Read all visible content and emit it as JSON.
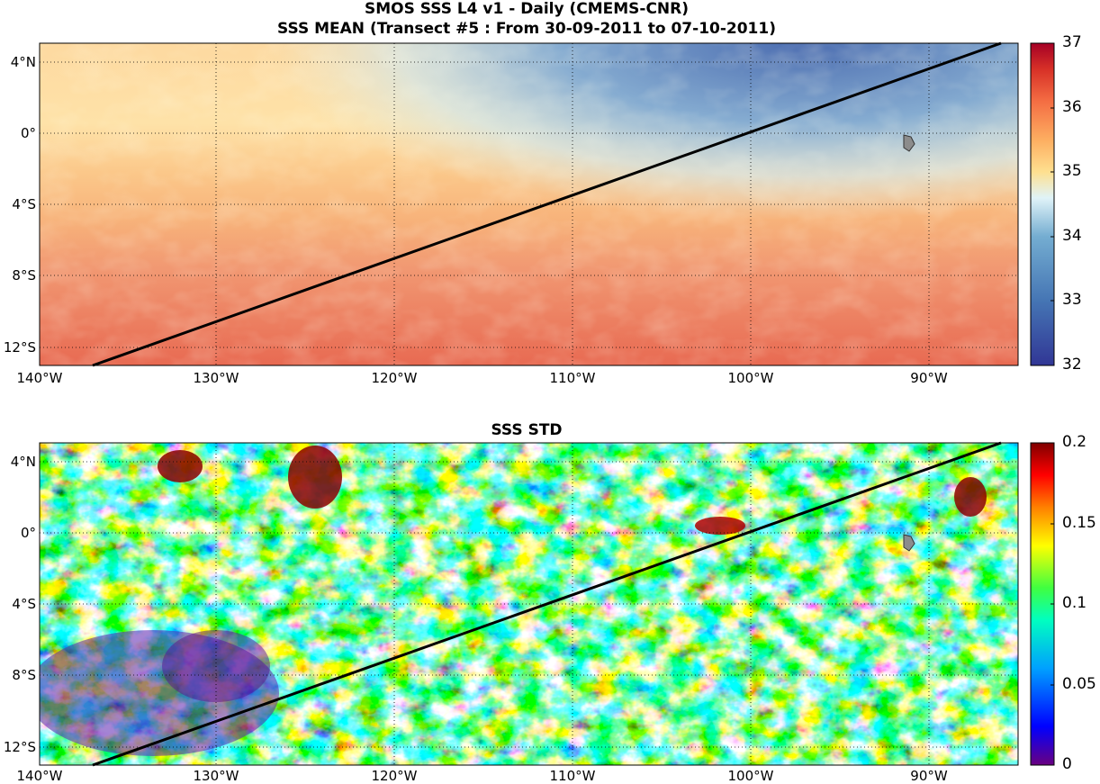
{
  "figure": {
    "title_line1": "SMOS SSS L4 v1 - Daily (CMEMS-CNR)",
    "title_line2": "SSS MEAN (Transect #5 : From 30-09-2011 to 07-10-2011)",
    "panel2_title": "SSS STD"
  },
  "axes": {
    "lat_ticks": [
      "4°N",
      "0°",
      "4°S",
      "8°S",
      "12°S"
    ],
    "lon_ticks": [
      "140°W",
      "130°W",
      "120°W",
      "110°W",
      "100°W",
      "90°W"
    ],
    "lon_range": [
      -140,
      -85
    ],
    "lat_range": [
      -13,
      5
    ]
  },
  "colorbars": {
    "mean": {
      "ticks": [
        "37",
        "36",
        "35",
        "34",
        "33",
        "32"
      ],
      "range": [
        32,
        37
      ]
    },
    "std": {
      "ticks": [
        "0.2",
        "0.15",
        "0.1",
        "0.05",
        "0"
      ],
      "range": [
        0,
        0.2
      ]
    }
  },
  "transect": {
    "start": {
      "lon": -137,
      "lat": -13
    },
    "end": {
      "lon": -86,
      "lat": 5
    }
  },
  "colors": {
    "transect": "#000000",
    "grid": "#000000",
    "land": "#8c8c8c"
  }
}
